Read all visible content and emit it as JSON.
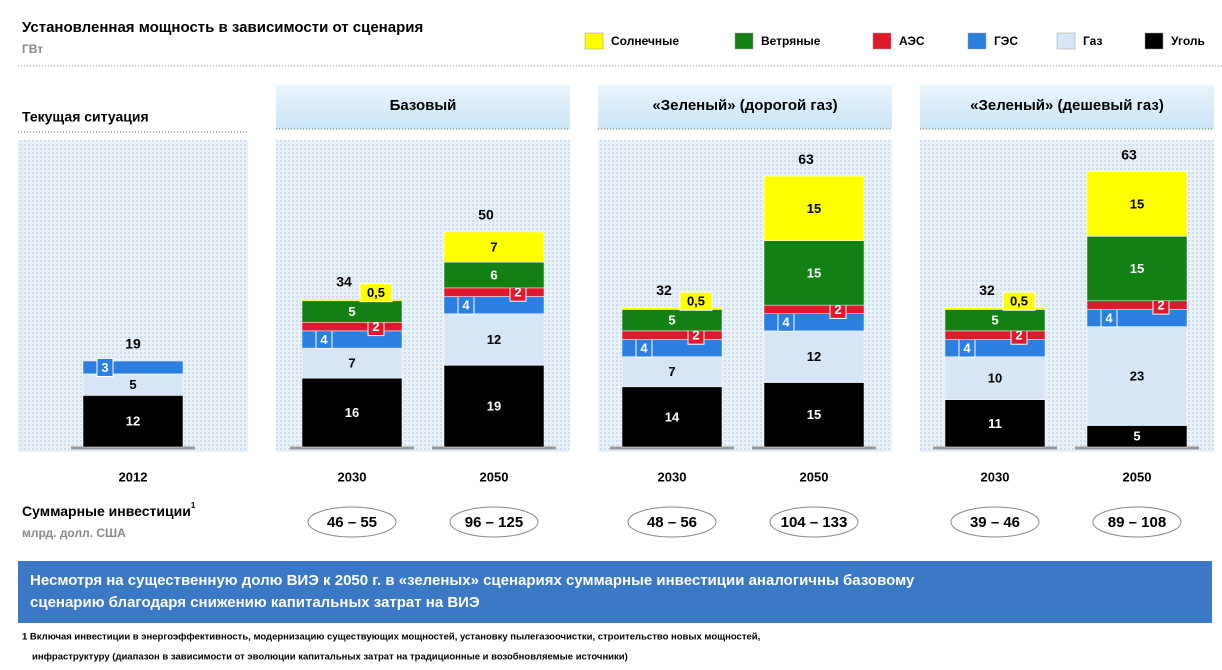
{
  "chart_data": {
    "type": "stacked_bar",
    "title": "Установленная мощность в зависимости от сценария",
    "subtitle": "ГВт",
    "groups": [
      "Текущая ситуация",
      "Базовый",
      "«Зеленый»  (дорогой газ)",
      "«Зеленый» (дешевый газ)"
    ],
    "categories": [
      "2012",
      "2030",
      "2050",
      "2030",
      "2050",
      "2030",
      "2050"
    ],
    "series": [
      {
        "name": "Уголь",
        "color": "#000000",
        "values": [
          12,
          16,
          19,
          14,
          15,
          11,
          5
        ]
      },
      {
        "name": "Газ",
        "color": "#d6e6f6",
        "values": [
          5,
          7,
          12,
          7,
          12,
          10,
          23
        ]
      },
      {
        "name": "ГЭС",
        "color": "#2a7fe0",
        "values": [
          3,
          4,
          4,
          4,
          4,
          4,
          4
        ]
      },
      {
        "name": "АЭС",
        "color": "#e0182c",
        "values": [
          null,
          2,
          2,
          2,
          2,
          2,
          2
        ]
      },
      {
        "name": "Ветряные",
        "color": "#128012",
        "values": [
          null,
          5,
          6,
          5,
          15,
          5,
          15
        ]
      },
      {
        "name": "Солнечные",
        "color": "#ffff00",
        "values": [
          null,
          0.5,
          7,
          0.5,
          15,
          0.5,
          15
        ],
        "value_labels": [
          null,
          "0,5",
          "7",
          "0,5",
          "15",
          "0,5",
          "15"
        ]
      }
    ],
    "totals": [
      19,
      34,
      50,
      32,
      63,
      32,
      63
    ],
    "investments": {
      "label": "Суммарные инвестиции",
      "note_mark": "1",
      "unit": "млрд. долл. США",
      "values": [
        null,
        "46 – 55",
        "96 – 125",
        "48 – 56",
        "104 – 133",
        "39 – 46",
        "89 – 108"
      ]
    },
    "conclusion": [
      "Несмотря на существенную долю ВИЭ  к 2050 г. в «зеленых» сценариях суммарные инвестиции аналогичны базовому",
      "сценарию благодаря снижению капитальных затрат на ВИЭ"
    ],
    "footnote": [
      "1 Включая инвестиции в энергоэффективность, модернизацию существующих мощностей, установку пылегазоочистки, строительство новых мощностей,",
      "инфраструктуру (диапазон в зависимости от эволюции капитальных затрат на традиционные и возобновляемые источники)"
    ]
  }
}
